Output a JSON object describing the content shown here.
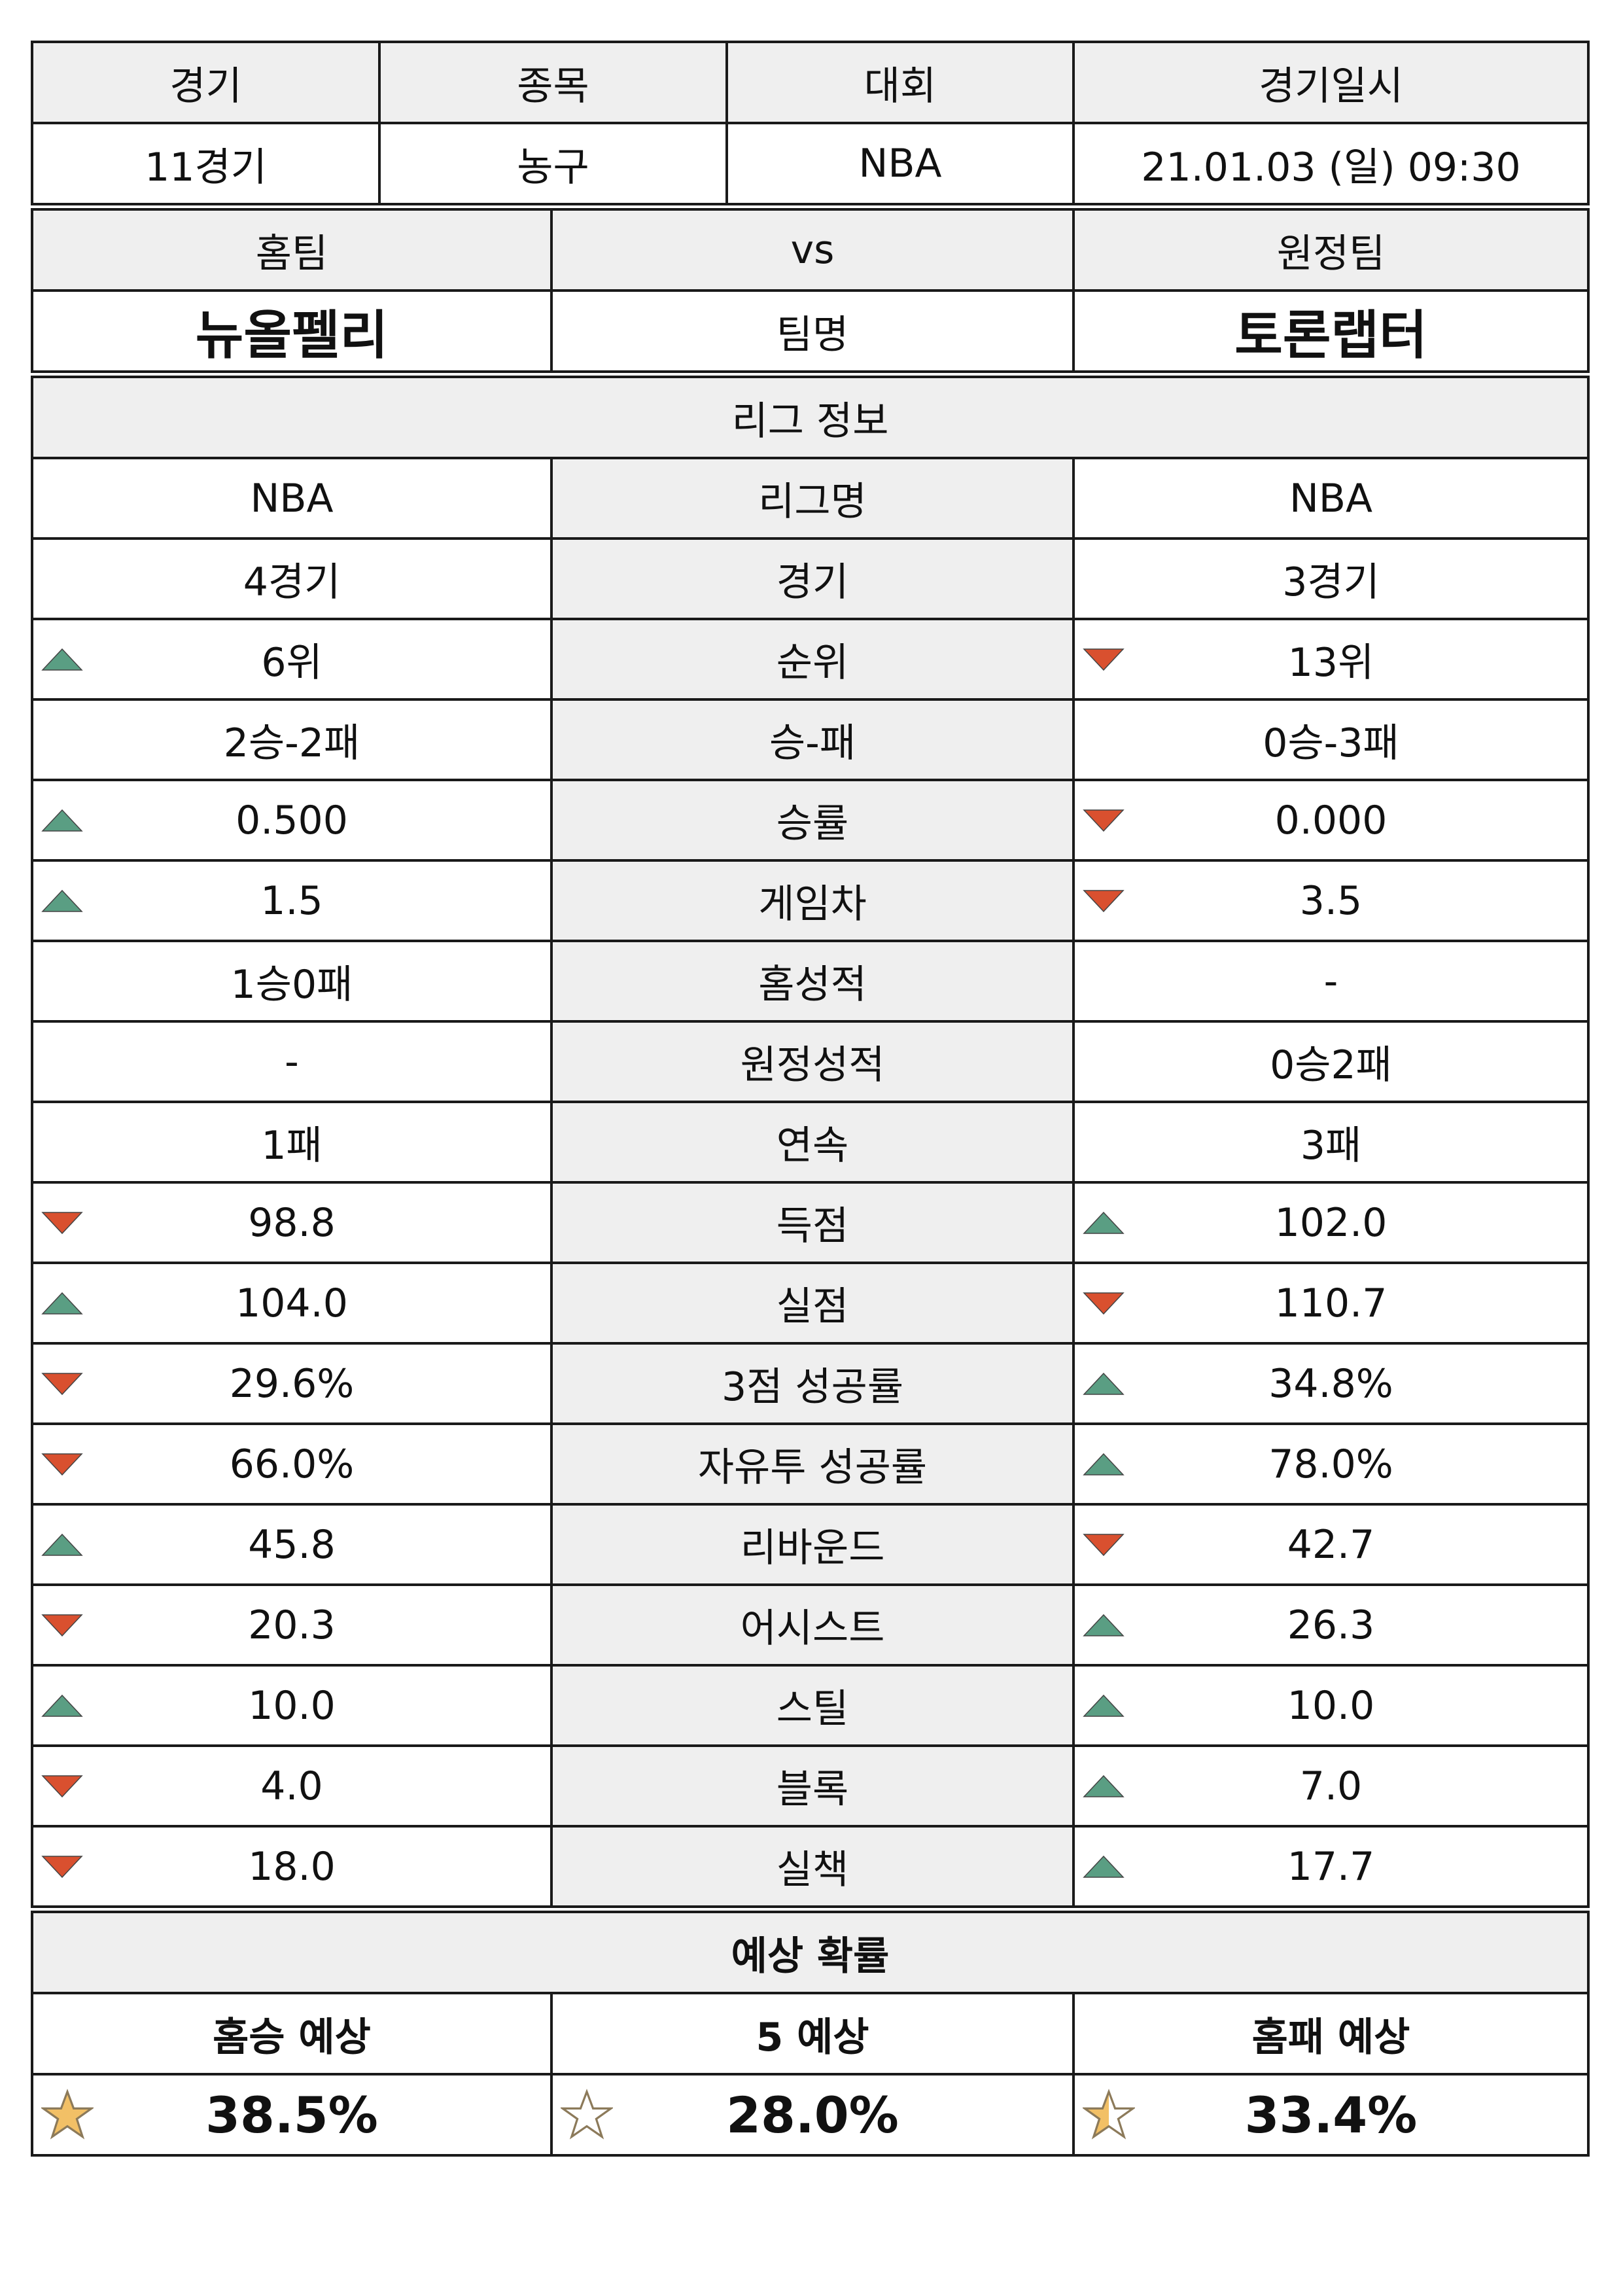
{
  "match_info": {
    "headers": [
      "경기",
      "종목",
      "대회",
      "경기일시"
    ],
    "values": [
      "11경기",
      "농구",
      "NBA",
      "21.01.03 (일) 09:30"
    ]
  },
  "teams": {
    "home_label": "홈팀",
    "vs_label": "vs",
    "away_label": "원정팀",
    "home_name": "뉴올펠리",
    "name_label": "팀명",
    "away_name": "토론랩터"
  },
  "league": {
    "title": "리그 정보",
    "rows": [
      {
        "label": "리그명",
        "home": "NBA",
        "away": "NBA",
        "home_trend": "",
        "away_trend": ""
      },
      {
        "label": "경기",
        "home": "4경기",
        "away": "3경기",
        "home_trend": "",
        "away_trend": ""
      },
      {
        "label": "순위",
        "home": "6위",
        "away": "13위",
        "home_trend": "up",
        "away_trend": "down"
      },
      {
        "label": "승-패",
        "home": "2승-2패",
        "away": "0승-3패",
        "home_trend": "",
        "away_trend": ""
      },
      {
        "label": "승률",
        "home": "0.500",
        "away": "0.000",
        "home_trend": "up",
        "away_trend": "down"
      },
      {
        "label": "게임차",
        "home": "1.5",
        "away": "3.5",
        "home_trend": "up",
        "away_trend": "down"
      },
      {
        "label": "홈성적",
        "home": "1승0패",
        "away": "-",
        "home_trend": "",
        "away_trend": ""
      },
      {
        "label": "원정성적",
        "home": "-",
        "away": "0승2패",
        "home_trend": "",
        "away_trend": ""
      },
      {
        "label": "연속",
        "home": "1패",
        "away": "3패",
        "home_trend": "",
        "away_trend": ""
      },
      {
        "label": "득점",
        "home": "98.8",
        "away": "102.0",
        "home_trend": "down",
        "away_trend": "up"
      },
      {
        "label": "실점",
        "home": "104.0",
        "away": "110.7",
        "home_trend": "up",
        "away_trend": "down"
      },
      {
        "label": "3점 성공률",
        "home": "29.6%",
        "away": "34.8%",
        "home_trend": "down",
        "away_trend": "up"
      },
      {
        "label": "자유투 성공률",
        "home": "66.0%",
        "away": "78.0%",
        "home_trend": "down",
        "away_trend": "up"
      },
      {
        "label": "리바운드",
        "home": "45.8",
        "away": "42.7",
        "home_trend": "up",
        "away_trend": "down"
      },
      {
        "label": "어시스트",
        "home": "20.3",
        "away": "26.3",
        "home_trend": "down",
        "away_trend": "up"
      },
      {
        "label": "스틸",
        "home": "10.0",
        "away": "10.0",
        "home_trend": "up",
        "away_trend": "up"
      },
      {
        "label": "블록",
        "home": "4.0",
        "away": "7.0",
        "home_trend": "down",
        "away_trend": "up"
      },
      {
        "label": "실책",
        "home": "18.0",
        "away": "17.7",
        "home_trend": "down",
        "away_trend": "up"
      }
    ]
  },
  "prediction": {
    "title": "예상 확률",
    "labels": [
      "홈승 예상",
      "5 예상",
      "홈패 예상"
    ],
    "values": [
      "38.5%",
      "28.0%",
      "33.4%"
    ],
    "stars": [
      "star-filled-icon",
      "star-outline-icon",
      "star-half-icon"
    ]
  },
  "colors": {
    "up": "#5a9e83",
    "down": "#d9502f",
    "star_fill": "#f2c066",
    "star_stroke": "#8c7a5a",
    "header_bg": "#efefef"
  }
}
